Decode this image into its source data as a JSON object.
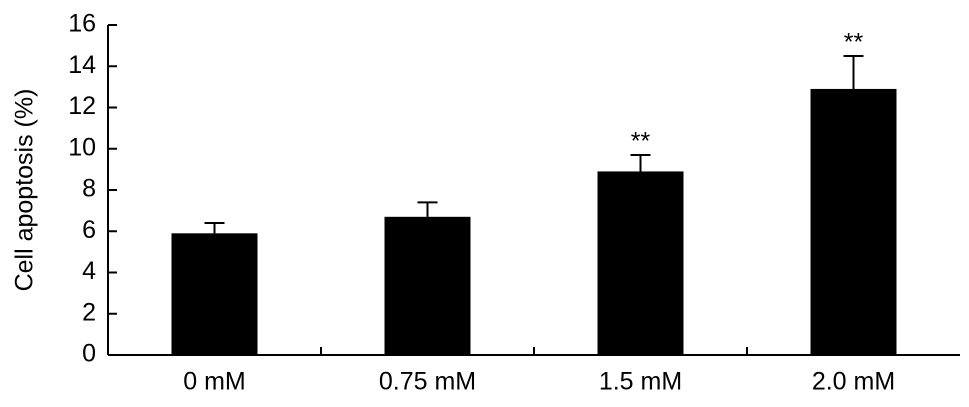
{
  "chart_data": {
    "type": "bar",
    "y_label": "Cell apoptosis (%)",
    "categories": [
      "0 mM",
      "0.75 mM",
      "1.5 mM",
      "2.0 mM"
    ],
    "values": [
      5.9,
      6.7,
      8.9,
      12.9
    ],
    "errors": [
      0.5,
      0.7,
      0.8,
      1.6
    ],
    "annotations": [
      null,
      null,
      "**",
      "**"
    ],
    "color": "#000000",
    "ylim": [
      0,
      16
    ],
    "yticks": [
      0,
      2,
      4,
      6,
      8,
      10,
      12,
      14,
      16
    ],
    "grid": false
  }
}
